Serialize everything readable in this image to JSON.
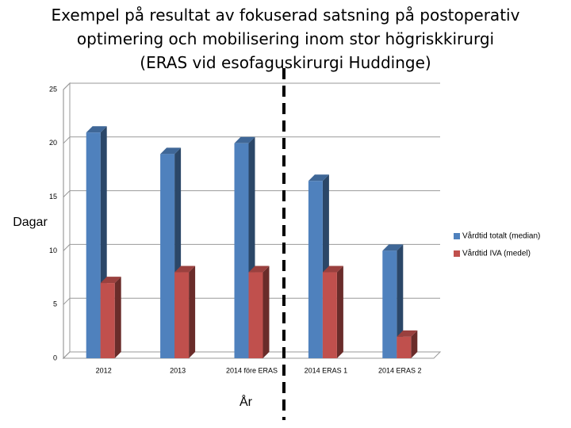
{
  "chart_data": {
    "type": "bar3d",
    "title": [
      "Exempel på resultat av fokuserad satsning på postoperativ",
      "optimering och mobilisering inom stor högriskkirurgi",
      "(ERAS vid esofaguskirurgi Huddinge)"
    ],
    "y_label": "Dagar",
    "x_label": "År",
    "categories": [
      "2012",
      "2013",
      "2014 före ERAS",
      "2014 ERAS 1",
      "2014 ERAS 2"
    ],
    "series": [
      {
        "name": "Vårdtid totalt (median)",
        "color": "#4f81bd",
        "values": [
          21,
          19,
          20,
          16.5,
          10
        ]
      },
      {
        "name": "Vårdtid IVA (medel)",
        "color": "#c0504d",
        "values": [
          7,
          8,
          8,
          8,
          2
        ]
      }
    ],
    "ylim": [
      0,
      25
    ],
    "yticks": [
      0,
      5,
      10,
      15,
      20,
      25
    ],
    "grid": true,
    "legend": "right"
  }
}
